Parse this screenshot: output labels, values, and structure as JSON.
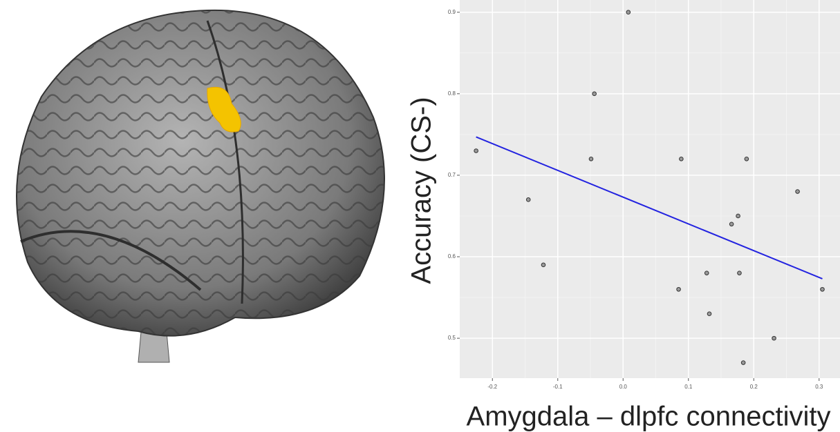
{
  "chart_data": {
    "type": "scatter",
    "x_label": "Amygdala – dlpfc connectivity",
    "y_label": "Accuracy (CS-)",
    "x": [
      -0.225,
      -0.145,
      -0.122,
      -0.049,
      -0.044,
      0.008,
      0.089,
      0.085,
      0.128,
      0.132,
      0.166,
      0.176,
      0.178,
      0.184,
      0.189,
      0.231,
      0.267,
      0.305
    ],
    "y": [
      0.73,
      0.67,
      0.59,
      0.72,
      0.8,
      0.9,
      0.72,
      0.56,
      0.58,
      0.53,
      0.64,
      0.65,
      0.58,
      0.47,
      0.72,
      0.5,
      0.68,
      0.56
    ],
    "color": "#9a9a9a",
    "trend": {
      "x": [
        -0.225,
        0.305
      ],
      "y": [
        0.747,
        0.573
      ],
      "color": "#2323e0"
    },
    "xlim": [
      -0.25,
      0.332
    ],
    "ylim": [
      0.451,
      0.915
    ],
    "xticks": [
      -0.2,
      -0.1,
      {
        "value": 0,
        "label": "0.0"
      },
      0.1,
      0.2,
      0.3
    ],
    "yticks": [
      0.5,
      0.6,
      0.7,
      0.8,
      0.9
    ],
    "grid": true
  }
}
